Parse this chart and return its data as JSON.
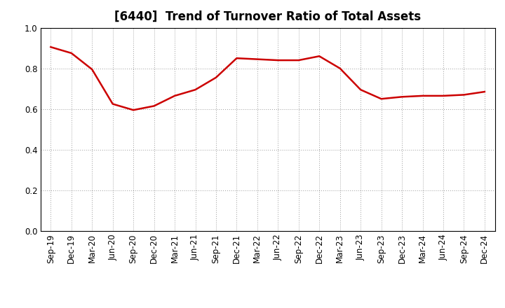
{
  "title": "[6440]  Trend of Turnover Ratio of Total Assets",
  "labels": [
    "Sep-19",
    "Dec-19",
    "Mar-20",
    "Jun-20",
    "Sep-20",
    "Dec-20",
    "Mar-21",
    "Jun-21",
    "Sep-21",
    "Dec-21",
    "Mar-22",
    "Jun-22",
    "Sep-22",
    "Dec-22",
    "Mar-23",
    "Jun-23",
    "Sep-23",
    "Dec-23",
    "Mar-24",
    "Jun-24",
    "Sep-24",
    "Dec-24"
  ],
  "values": [
    0.905,
    0.875,
    0.795,
    0.625,
    0.595,
    0.615,
    0.665,
    0.695,
    0.755,
    0.85,
    0.845,
    0.84,
    0.84,
    0.86,
    0.8,
    0.695,
    0.65,
    0.66,
    0.665,
    0.665,
    0.67,
    0.685
  ],
  "line_color": "#cc0000",
  "line_width": 1.8,
  "ylim": [
    0.0,
    1.0
  ],
  "yticks": [
    0.0,
    0.2,
    0.4,
    0.6,
    0.8,
    1.0
  ],
  "grid_color": "#999999",
  "background_color": "#ffffff",
  "title_fontsize": 12,
  "tick_fontsize": 8.5
}
